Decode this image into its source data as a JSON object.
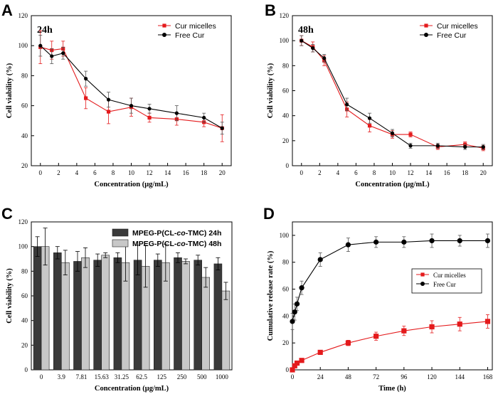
{
  "chart_data": [
    {
      "panel": "A",
      "type": "line",
      "annotation": "24h",
      "xlabel": "Concentration (μg/mL)",
      "ylabel": "Cell viability (%)",
      "xlim": [
        -1,
        21
      ],
      "ylim": [
        20,
        120
      ],
      "xticks": [
        0,
        2,
        4,
        6,
        8,
        10,
        12,
        14,
        16,
        18,
        20
      ],
      "yticks": [
        20,
        40,
        60,
        80,
        100,
        120
      ],
      "legend_position": "top-right",
      "series": [
        {
          "name": "Cur micelles",
          "color": "#e41a1c",
          "marker": "square",
          "x": [
            0,
            1.25,
            2.5,
            5,
            7.5,
            10,
            12,
            15,
            18,
            20
          ],
          "y": [
            99,
            97,
            98,
            65,
            56,
            59,
            52,
            51,
            49,
            45
          ],
          "err": [
            11,
            6,
            5,
            7,
            8,
            6,
            3,
            4,
            3,
            9
          ]
        },
        {
          "name": "Free Cur",
          "color": "#000000",
          "marker": "circle",
          "x": [
            0,
            1.25,
            2.5,
            5,
            7.5,
            10,
            12,
            15,
            18,
            20
          ],
          "y": [
            100,
            93,
            95,
            78,
            64,
            60,
            58,
            55,
            52,
            45
          ],
          "err": [
            7,
            5,
            4,
            5,
            5,
            5,
            3,
            5,
            3,
            4
          ]
        }
      ]
    },
    {
      "panel": "B",
      "type": "line",
      "annotation": "48h",
      "xlabel": "Concentration (μg/mL)",
      "ylabel": "Cell viability (%)",
      "xlim": [
        -1,
        21
      ],
      "ylim": [
        0,
        120
      ],
      "xticks": [
        0,
        2,
        4,
        6,
        8,
        10,
        12,
        14,
        16,
        18,
        20
      ],
      "yticks": [
        0,
        20,
        40,
        60,
        80,
        100,
        120
      ],
      "legend_position": "top-right",
      "series": [
        {
          "name": "Cur micelles",
          "color": "#e41a1c",
          "marker": "square",
          "x": [
            0,
            1.25,
            2.5,
            5,
            7.5,
            10,
            12,
            15,
            18,
            20
          ],
          "y": [
            100,
            95,
            84,
            45,
            32,
            25,
            25,
            15,
            17,
            14
          ],
          "err": [
            4,
            4,
            4,
            6,
            5,
            3,
            2,
            2,
            2,
            2
          ]
        },
        {
          "name": "Free Cur",
          "color": "#000000",
          "marker": "circle",
          "x": [
            0,
            1.25,
            2.5,
            5,
            7.5,
            10,
            12,
            15,
            18,
            20
          ],
          "y": [
            100,
            94,
            86,
            49,
            38,
            26,
            16,
            16,
            15,
            15
          ],
          "err": [
            4,
            3,
            3,
            5,
            4,
            3,
            2,
            2,
            2,
            2
          ]
        }
      ]
    },
    {
      "panel": "C",
      "type": "bar",
      "xlabel": "Concentration (μg/mL)",
      "ylabel": "Cell viability (%)",
      "ylim": [
        0,
        120
      ],
      "yticks": [
        0,
        20,
        40,
        60,
        80,
        100,
        120
      ],
      "categories": [
        "0",
        "3.9",
        "7.81",
        "15.63",
        "31.25",
        "62.5",
        "125",
        "250",
        "500",
        "1000"
      ],
      "legend_position": "top-right",
      "series": [
        {
          "name": "MPEG-P(CL-co-TMC)  24h",
          "name_prefix": "MPEG-P(CL-",
          "name_italic": "co",
          "name_suffix": "-TMC)  24h",
          "color": "#3a3a3a",
          "values": [
            100,
            95,
            88,
            89,
            91,
            89,
            89,
            91,
            89,
            86
          ],
          "err": [
            8,
            5,
            8,
            5,
            4,
            12,
            5,
            4,
            4,
            5
          ]
        },
        {
          "name": "MPEG-P(CL-co-TMC)  48h",
          "name_prefix": "MPEG-P(CL-",
          "name_italic": "co",
          "name_suffix": "-TMC)  48h",
          "color": "#c8c8c8",
          "values": [
            100,
            87,
            91,
            93,
            87,
            84,
            87,
            88,
            75,
            64
          ],
          "err": [
            15,
            10,
            8,
            2,
            15,
            17,
            15,
            2,
            8,
            7
          ]
        }
      ]
    },
    {
      "panel": "D",
      "type": "line",
      "xlabel": "Time (h)",
      "ylabel": "Cumulative release rate (%)",
      "xlim": [
        0,
        172
      ],
      "ylim": [
        0,
        110
      ],
      "xticks": [
        0,
        24,
        48,
        72,
        96,
        120,
        144,
        168
      ],
      "yticks": [
        0,
        20,
        40,
        60,
        80,
        100
      ],
      "legend_position": "center-right",
      "series": [
        {
          "name": "Cur micelles",
          "color": "#e41a1c",
          "marker": "square",
          "x": [
            0,
            2,
            4,
            8,
            24,
            48,
            72,
            96,
            120,
            144,
            168
          ],
          "y": [
            0,
            3,
            5,
            7,
            13,
            20,
            25,
            29,
            32,
            34,
            36
          ],
          "err": [
            0,
            1,
            1,
            1.5,
            1.5,
            2,
            3,
            3.5,
            4.5,
            5,
            5
          ]
        },
        {
          "name": "Free Cur",
          "color": "#000000",
          "marker": "circle",
          "x": [
            0,
            2,
            4,
            8,
            24,
            48,
            72,
            96,
            120,
            144,
            168
          ],
          "y": [
            36,
            43,
            49,
            61,
            82,
            93,
            95,
            95,
            96,
            96,
            96
          ],
          "err": [
            6,
            6,
            5,
            5,
            5,
            5,
            4,
            4,
            5,
            4,
            5
          ]
        }
      ]
    }
  ]
}
